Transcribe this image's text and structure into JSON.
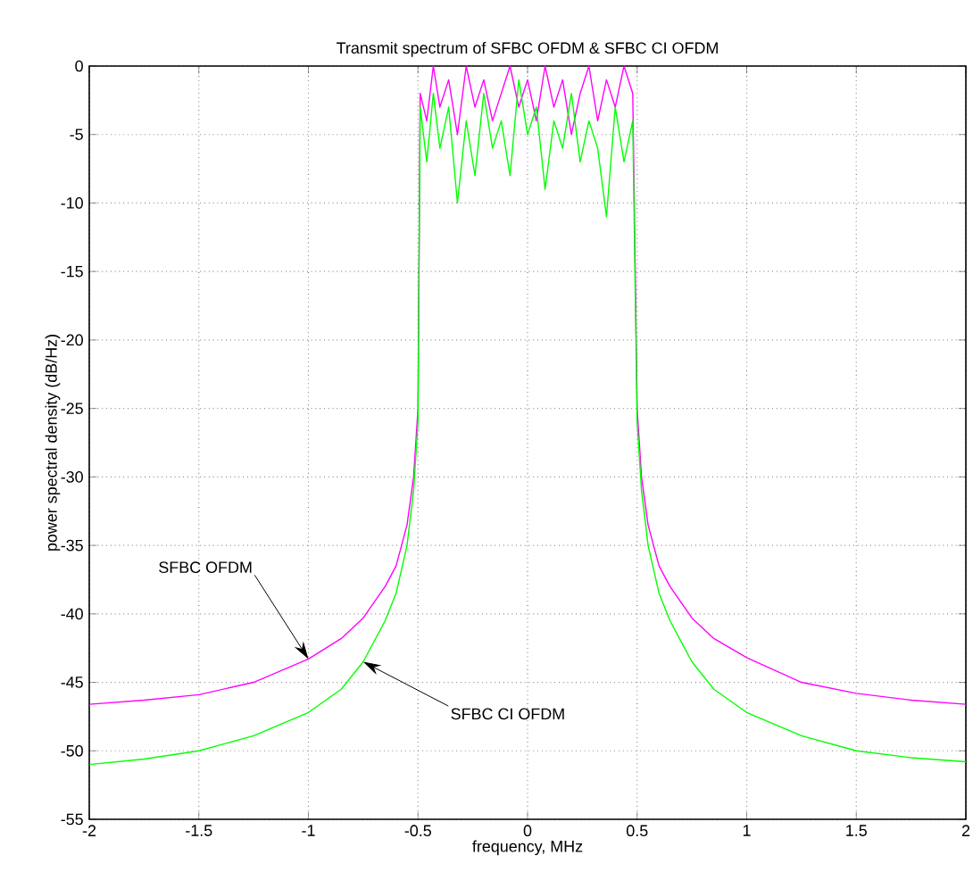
{
  "chart_data": {
    "type": "line",
    "title": "Transmit spectrum of SFBC OFDM & SFBC CI OFDM",
    "xlabel": "frequency, MHz",
    "ylabel": "power spectral density  (dB/Hz)",
    "xlim": [
      -2,
      2
    ],
    "ylim": [
      -55,
      0
    ],
    "xticks": [
      -2,
      -1.5,
      -1,
      -0.5,
      0,
      0.5,
      1,
      1.5,
      2
    ],
    "yticks": [
      -55,
      -50,
      -45,
      -40,
      -35,
      -30,
      -25,
      -20,
      -15,
      -10,
      -5,
      0
    ],
    "grid": true,
    "line_style": "solid",
    "annotations": [
      {
        "text": "SFBC OFDM",
        "x": -1,
        "y": -43.3
      },
      {
        "text": "SFBC CI OFDM",
        "x": -0.75,
        "y": -43.5
      }
    ],
    "series": [
      {
        "color": "#ff00ff",
        "x": [
          -2,
          -1.75,
          -1.5,
          -1.25,
          -1,
          -0.85,
          -0.75,
          -0.65,
          -0.6,
          -0.55,
          -0.52,
          -0.5,
          -0.49,
          -0.46,
          -0.43,
          -0.4,
          -0.36,
          -0.32,
          -0.28,
          -0.24,
          -0.2,
          -0.16,
          -0.12,
          -0.08,
          -0.04,
          0,
          0.04,
          0.08,
          0.12,
          0.16,
          0.2,
          0.24,
          0.28,
          0.32,
          0.36,
          0.4,
          0.44,
          0.48,
          0.5,
          0.52,
          0.55,
          0.6,
          0.65,
          0.75,
          0.85,
          1,
          1.25,
          1.5,
          1.75,
          2
        ],
        "values": [
          -46.6,
          -46.3,
          -45.9,
          -45,
          -43.3,
          -41.8,
          -40.3,
          -38,
          -36.5,
          -33.5,
          -30,
          -25,
          -2,
          -4,
          0,
          -3,
          -1,
          -5,
          0,
          -3,
          -1,
          -4,
          -2,
          0,
          -3,
          -1,
          -4,
          0,
          -3,
          -1,
          -5,
          -2,
          0,
          -4,
          -1,
          -3,
          0,
          -2,
          -25,
          -30,
          -33.5,
          -36.5,
          -38,
          -40.3,
          -41.8,
          -43.2,
          -45,
          -45.8,
          -46.3,
          -46.6
        ]
      },
      {
        "color": "#00ff00",
        "x": [
          -2,
          -1.75,
          -1.5,
          -1.25,
          -1,
          -0.85,
          -0.75,
          -0.65,
          -0.6,
          -0.55,
          -0.52,
          -0.5,
          -0.49,
          -0.46,
          -0.43,
          -0.4,
          -0.36,
          -0.32,
          -0.28,
          -0.24,
          -0.2,
          -0.16,
          -0.12,
          -0.08,
          -0.04,
          0,
          0.04,
          0.08,
          0.12,
          0.16,
          0.2,
          0.24,
          0.28,
          0.32,
          0.36,
          0.4,
          0.44,
          0.48,
          0.5,
          0.52,
          0.55,
          0.6,
          0.65,
          0.75,
          0.85,
          1,
          1.25,
          1.5,
          1.75,
          2
        ],
        "values": [
          -51,
          -50.6,
          -50,
          -48.9,
          -47.2,
          -45.5,
          -43.5,
          -40.5,
          -38.5,
          -35,
          -31,
          -26,
          -3,
          -7,
          -2,
          -6,
          -3,
          -10,
          -4,
          -8,
          -2,
          -6,
          -4,
          -8,
          -1,
          -5,
          -3,
          -9,
          -4,
          -6,
          -2,
          -7,
          -4,
          -6,
          -11,
          -3,
          -7,
          -4,
          -26,
          -31,
          -35,
          -38.5,
          -40.5,
          -43.5,
          -45.5,
          -47.2,
          -48.9,
          -50,
          -50.5,
          -50.8
        ]
      }
    ]
  }
}
